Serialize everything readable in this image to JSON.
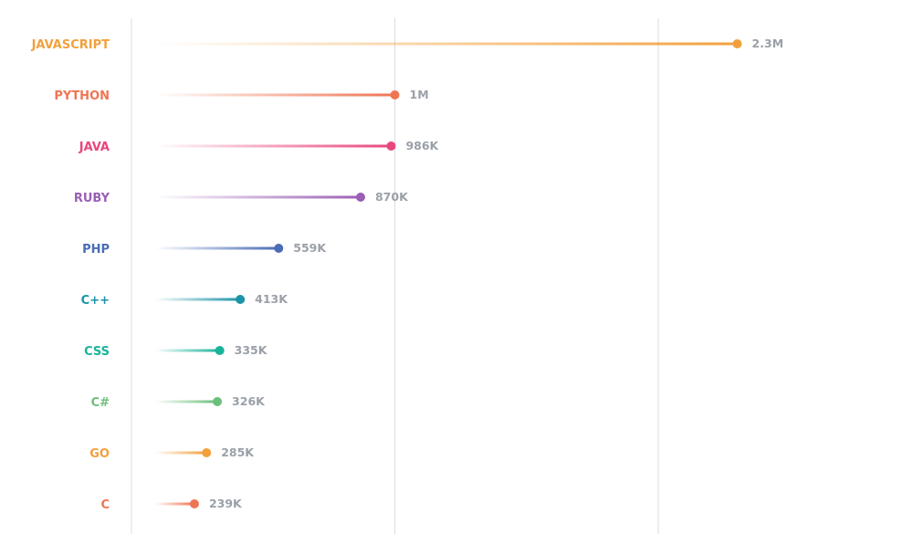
{
  "chart_data": {
    "type": "lollipop",
    "orientation": "horizontal",
    "categories": [
      "JAVASCRIPT",
      "PYTHON",
      "JAVA",
      "RUBY",
      "PHP",
      "C++",
      "CSS",
      "C#",
      "GO",
      "C"
    ],
    "values": [
      2300000,
      1000000,
      986000,
      870000,
      559000,
      413000,
      335000,
      326000,
      285000,
      239000
    ],
    "value_labels": [
      "2.3M",
      "1M",
      "986K",
      "870K",
      "559K",
      "413K",
      "335K",
      "326K",
      "285K",
      "239K"
    ],
    "colors": [
      "#f2a03d",
      "#ef7553",
      "#e8467c",
      "#9b5fb5",
      "#4a6db5",
      "#1b93a8",
      "#19b39a",
      "#6cbf7a",
      "#f2a03d",
      "#ef7553"
    ],
    "xlim": [
      0,
      2600000
    ],
    "gridlines": [
      0,
      1000000,
      2000000
    ],
    "grid": true,
    "legend": "none",
    "title": "",
    "xlabel": "",
    "ylabel": ""
  }
}
